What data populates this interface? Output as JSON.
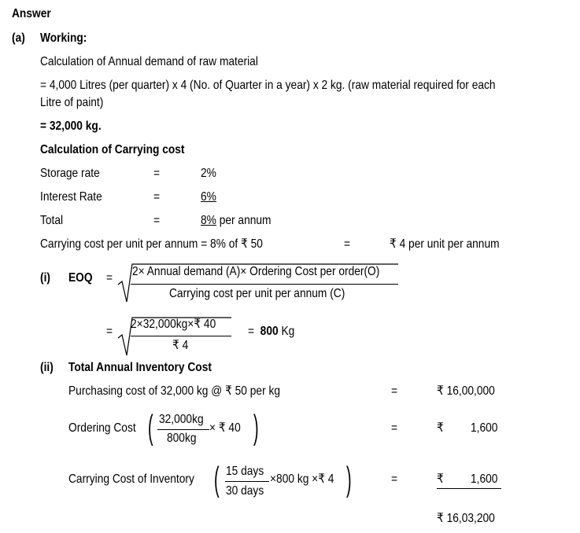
{
  "heading": "Answer",
  "part_a": {
    "label": "(a)",
    "title": "Working:",
    "annual_demand": {
      "title": "Calculation of Annual demand of raw material",
      "line1": "= 4,000 Litres (per quarter) x 4 (No. of Quarter in a year) x 2 kg. (raw material required for each",
      "line2": "Litre of paint)",
      "result": "= 32,000 kg."
    },
    "carrying_cost": {
      "title": "Calculation of Carrying cost",
      "rows": [
        {
          "label": "Storage rate",
          "eq": "=",
          "value": "2%",
          "suffix": ""
        },
        {
          "label": "Interest Rate",
          "eq": "=",
          "value": "6%",
          "suffix": ""
        },
        {
          "label": "Total",
          "eq": "=",
          "value": "8%",
          "suffix": " per annum"
        }
      ],
      "per_unit": {
        "label": "Carrying cost per unit per annum  = 8% of ₹ 50",
        "eq": "=",
        "value": "₹ 4 per unit per annum"
      }
    },
    "eoq": {
      "label": "(i)",
      "title": "EOQ",
      "eq": "=",
      "formula_numerator": "2× Annual demand (A)× Ordering Cost per order(O)",
      "formula_denominator": "Carrying cost per unit per annum (C)",
      "calc_numerator": "2×32,000kg×₹ 40",
      "calc_denominator": "₹ 4",
      "result_eq": "=",
      "result_value": "800",
      "result_unit": " Kg"
    },
    "total_cost": {
      "label": "(ii)",
      "title": "Total Annual Inventory Cost",
      "purchasing": {
        "label": "Purchasing cost of 32,000 kg @ ₹ 50 per kg",
        "eq": "=",
        "value": "₹ 16,00,000"
      },
      "ordering": {
        "label": "Ordering Cost",
        "numerator": "32,000kg",
        "denominator": "800kg",
        "multiplier": "× ₹ 40",
        "eq": "=",
        "currency": "₹",
        "value": "1,600"
      },
      "carrying": {
        "label": "Carrying Cost of Inventory",
        "numerator": "15 days",
        "denominator": "30 days",
        "multiplier": "×800 kg ×₹ 4",
        "eq": "=",
        "currency": "₹",
        "value": "1,600"
      },
      "total": "₹ 16,03,200"
    }
  }
}
